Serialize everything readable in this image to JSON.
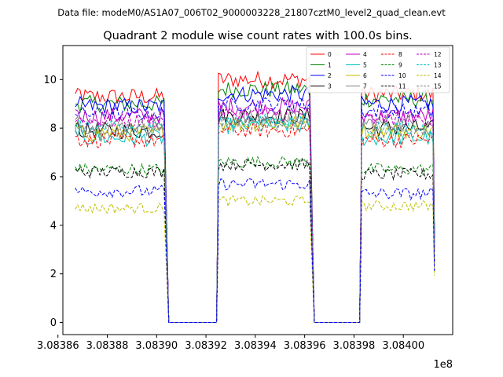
{
  "figure": {
    "suptitle": "Data file: modeM0/AS1A07_006T02_9000003228_21807cztM0_level2_quad_clean.evt"
  },
  "chart_data": {
    "type": "line",
    "title": "Quadrant 2 module wise count rates with 100.0s bins.",
    "xlabel": "",
    "ylabel": "",
    "x_offset_label": "1e8",
    "x_range": [
      3.083862,
      3.08402
    ],
    "ylim": [
      -0.5,
      11.4
    ],
    "x_ticks": [
      3.08386,
      3.08388,
      3.0839,
      3.08392,
      3.08394,
      3.08396,
      3.08398,
      3.084
    ],
    "x_tick_labels": [
      "3.08386",
      "3.08388",
      "3.08390",
      "3.08392",
      "3.08394",
      "3.08396",
      "3.08398",
      "3.08400"
    ],
    "y_ticks": [
      0,
      2,
      4,
      6,
      8,
      10
    ],
    "y_tick_labels": [
      "0",
      "2",
      "4",
      "6",
      "8",
      "10"
    ],
    "grid": false,
    "legend_position": "top-right",
    "segments": [
      [
        3.083867,
        3.083903
      ],
      [
        3.083925,
        3.083962
      ],
      [
        3.083983,
        3.084012
      ]
    ],
    "gap_value": 0,
    "series": [
      {
        "name": "0",
        "color": "#ff0000",
        "dash": "solid",
        "levels": [
          9.3,
          10.0,
          9.4
        ],
        "noise": 0.35
      },
      {
        "name": "1",
        "color": "#008000",
        "dash": "solid",
        "levels": [
          9.0,
          9.6,
          9.2
        ],
        "noise": 0.35
      },
      {
        "name": "2",
        "color": "#0000ff",
        "dash": "solid",
        "levels": [
          8.9,
          9.4,
          9.0
        ],
        "noise": 0.35
      },
      {
        "name": "3",
        "color": "#000000",
        "dash": "solid",
        "levels": [
          7.9,
          8.5,
          8.0
        ],
        "noise": 0.35
      },
      {
        "name": "4",
        "color": "#bf00bf",
        "dash": "solid",
        "levels": [
          8.5,
          8.9,
          8.5
        ],
        "noise": 0.35
      },
      {
        "name": "5",
        "color": "#00bfbf",
        "dash": "solid",
        "levels": [
          7.6,
          8.1,
          7.6
        ],
        "noise": 0.35
      },
      {
        "name": "6",
        "color": "#bfbf00",
        "dash": "solid",
        "levels": [
          7.8,
          8.2,
          7.9
        ],
        "noise": 0.35
      },
      {
        "name": "7",
        "color": "#808080",
        "dash": "solid",
        "levels": [
          8.1,
          8.4,
          8.2
        ],
        "noise": 0.35
      },
      {
        "name": "8",
        "color": "#ff0000",
        "dash": "dashed",
        "levels": [
          7.5,
          7.9,
          7.5
        ],
        "noise": 0.3
      },
      {
        "name": "9",
        "color": "#008000",
        "dash": "dashed",
        "levels": [
          6.3,
          6.6,
          6.3
        ],
        "noise": 0.25
      },
      {
        "name": "10",
        "color": "#0000ff",
        "dash": "dashed",
        "levels": [
          8.6,
          9.0,
          8.7
        ],
        "noise": 0.3
      },
      {
        "name": "11",
        "color": "#000000",
        "dash": "dashed",
        "levels": [
          6.2,
          6.5,
          6.1
        ],
        "noise": 0.25
      },
      {
        "name": "12",
        "color": "#bf00bf",
        "dash": "dashed",
        "levels": [
          8.3,
          8.6,
          8.4
        ],
        "noise": 0.3
      },
      {
        "name": "13",
        "color": "#00bfbf",
        "dash": "dashed",
        "levels": [
          8.0,
          8.3,
          8.0
        ],
        "noise": 0.3
      },
      {
        "name": "14",
        "color": "#bfbf00",
        "dash": "dashed",
        "levels": [
          4.7,
          5.0,
          4.8
        ],
        "noise": 0.22
      },
      {
        "name": "15",
        "color": "#808080",
        "dash": "dashed",
        "levels": [
          7.9,
          8.2,
          7.9
        ],
        "noise": 0.3
      },
      {
        "name": "2b",
        "color": "#0000ff",
        "dash": "dashed",
        "levels": [
          5.4,
          5.7,
          5.3
        ],
        "noise": 0.25,
        "hidden_from_legend": true
      }
    ]
  }
}
